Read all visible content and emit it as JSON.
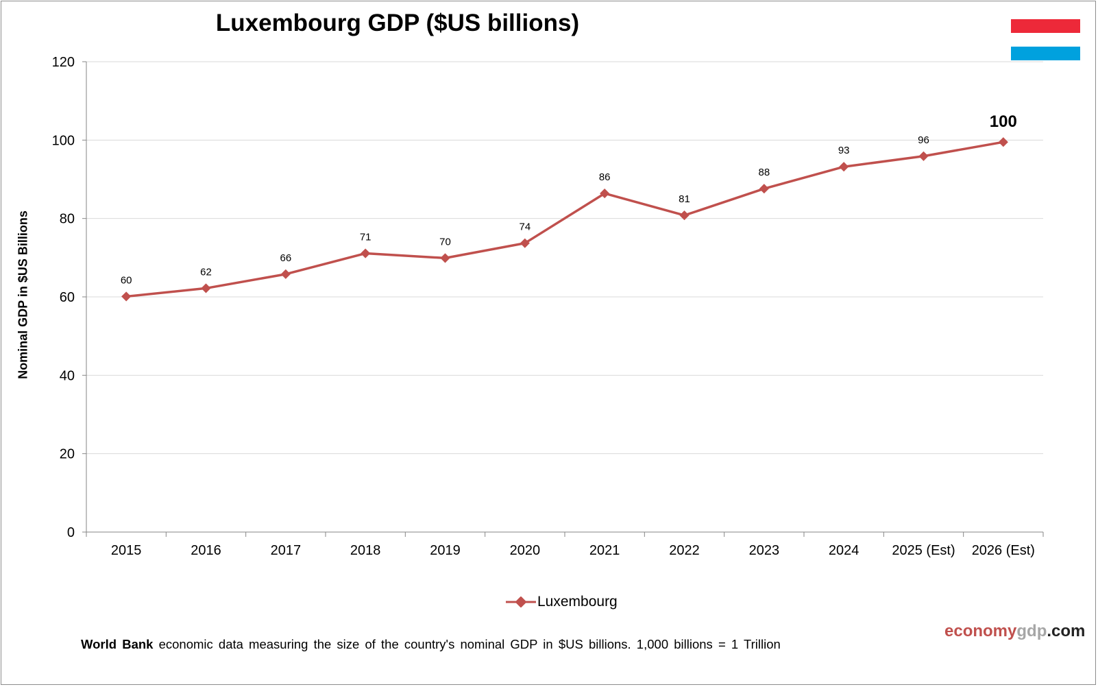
{
  "chart_data": {
    "type": "line",
    "title": "Luxembourg GDP ($US billions)",
    "ylabel": "Nominal GDP in $US Billions",
    "xlabel": "",
    "categories": [
      "2015",
      "2016",
      "2017",
      "2018",
      "2019",
      "2020",
      "2021",
      "2022",
      "2023",
      "2024",
      "2025 (Est)",
      "2026 (Est)"
    ],
    "series": [
      {
        "name": "Luxembourg",
        "values": [
          60.1,
          62.2,
          65.8,
          71.1,
          69.9,
          73.7,
          86.4,
          80.8,
          87.6,
          93.2,
          95.9,
          99.5
        ],
        "labels": [
          "60",
          "62",
          "66",
          "71",
          "70",
          "74",
          "86",
          "81",
          "88",
          "93",
          "96",
          "100"
        ],
        "color": "#c0504d"
      }
    ],
    "ylim": [
      0,
      120
    ],
    "yticks": [
      "0",
      "20",
      "40",
      "60",
      "80",
      "100",
      "120"
    ],
    "grid": true,
    "legend": "bottom-center"
  },
  "flag": {
    "stripe_colors": [
      "#ed2939",
      "#ffffff",
      "#00a1de"
    ]
  },
  "footnote": {
    "bold": "World Bank",
    "text": " economic data  measuring  the size of the country's nominal  GDP in $US  billions.  1,000 billions = 1 Trillion"
  },
  "brand": {
    "part1": "economy",
    "part2": "gdp",
    "part3": ".com"
  },
  "colors": {
    "series": "#c0504d",
    "grid": "#d9d9d9",
    "axis": "#868686"
  }
}
